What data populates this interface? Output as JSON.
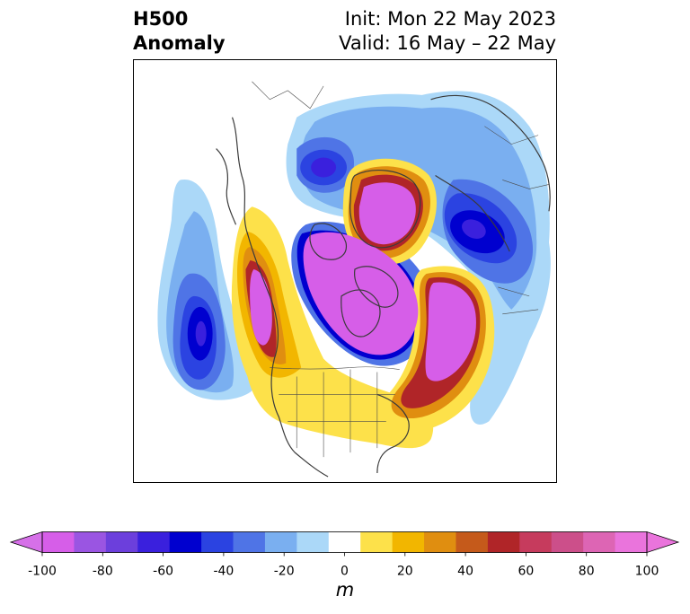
{
  "title": {
    "left_line1": "H500",
    "left_line2": "Anomaly",
    "right_line1": "Init: Mon 22 May 2023",
    "right_line2": "Valid: 16 May – 22 May"
  },
  "map": {
    "projection": "polar stereographic, North America / Arctic",
    "basemap": "coastlines and political borders in dark gray"
  },
  "colorbar": {
    "unit": "m",
    "tick_labels": [
      "-100",
      "-80",
      "-60",
      "-40",
      "-20",
      "0",
      "20",
      "40",
      "60",
      "80",
      "100"
    ],
    "tick_values": [
      -100,
      -80,
      -60,
      -40,
      -20,
      0,
      20,
      40,
      60,
      80,
      100
    ],
    "colors": [
      "#d65ee8",
      "#9a55e2",
      "#6c3fdc",
      "#3a20dd",
      "#0000cf",
      "#2b43e1",
      "#4f74e6",
      "#7aaff0",
      "#abd8f8",
      "#ffffff",
      "#fde14a",
      "#f2b600",
      "#e08e10",
      "#c55a1b",
      "#b02528",
      "#c63b5d",
      "#cc4f8a",
      "#dd65b4",
      "#ea74dc"
    ],
    "extend": "both",
    "extend_min_color": "#d670e8",
    "extend_max_color": "#ea74dc"
  }
}
